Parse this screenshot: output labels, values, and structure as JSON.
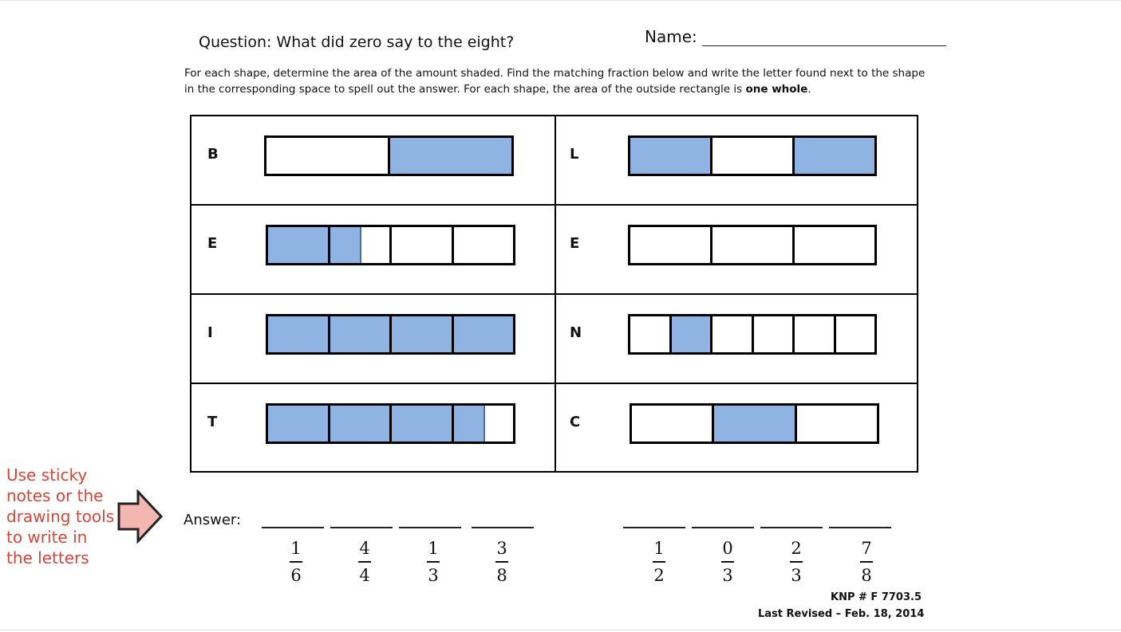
{
  "header": {
    "question": "Question: What did zero say to the eight?",
    "name_label": "Name:"
  },
  "instructions": {
    "text_before": "For each shape, determine the area of the amount shaded. Find the matching fraction below and write the letter found next to the shape in the corresponding space to spell out the answer. For each shape, the area of the outside rectangle is ",
    "bold": "one whole",
    "text_after": "."
  },
  "shapes": [
    {
      "letter": "B",
      "parts": 2,
      "shaded": [
        0,
        1
      ]
    },
    {
      "letter": "L",
      "parts": 3,
      "shaded": [
        1,
        0,
        1
      ]
    },
    {
      "letter": "E",
      "parts": 4,
      "shaded": [
        1,
        0.5,
        0,
        0
      ]
    },
    {
      "letter": "E",
      "parts": 3,
      "shaded": [
        0,
        0,
        0
      ]
    },
    {
      "letter": "I",
      "parts": 4,
      "shaded": [
        1,
        1,
        1,
        1
      ]
    },
    {
      "letter": "N",
      "parts": 6,
      "shaded": [
        0,
        1,
        0,
        0,
        0,
        0
      ]
    },
    {
      "letter": "T",
      "parts": 4,
      "shaded": [
        1,
        1,
        1,
        0.5
      ]
    },
    {
      "letter": "C",
      "parts": 3,
      "shaded": [
        0,
        1,
        0
      ]
    }
  ],
  "side_note": {
    "text": "Use sticky notes or the drawing tools to write in the letters",
    "color": "#d0483a",
    "arrow_color": "#f4b6b0",
    "icon": "right-arrow-icon"
  },
  "answer": {
    "label": "Answer:",
    "fractions": [
      {
        "num": "1",
        "den": "6"
      },
      {
        "num": "4",
        "den": "4"
      },
      {
        "num": "1",
        "den": "3"
      },
      {
        "num": "3",
        "den": "8"
      },
      {
        "num": "1",
        "den": "2"
      },
      {
        "num": "0",
        "den": "3"
      },
      {
        "num": "2",
        "den": "3"
      },
      {
        "num": "7",
        "den": "8"
      }
    ]
  },
  "footer": {
    "code": "KNP # F 7703.5",
    "revised": "Last Revised – Feb. 18, 2014"
  },
  "colors": {
    "shade": "#8fb4e3"
  }
}
